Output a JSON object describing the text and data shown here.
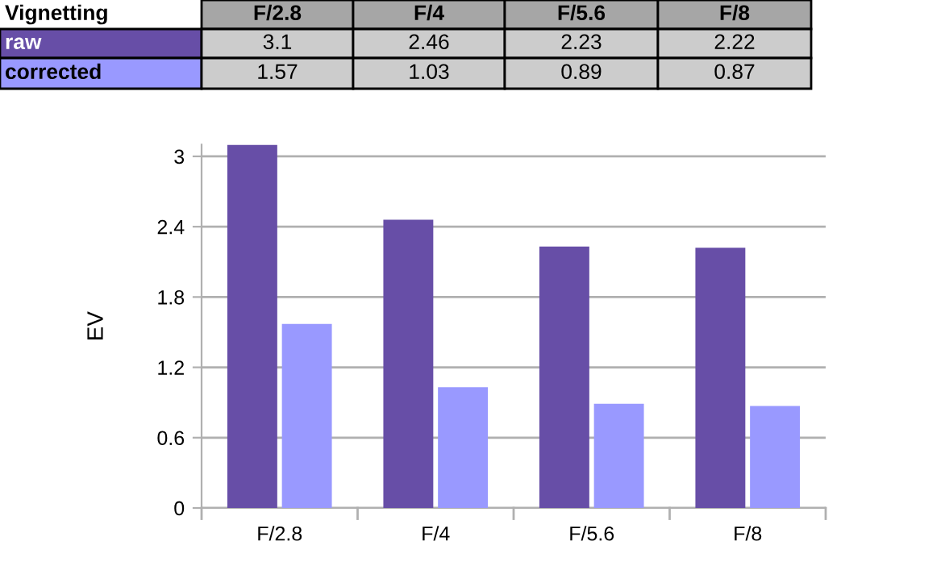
{
  "chart_data": {
    "type": "bar",
    "title": "Vignetting",
    "ylabel": "EV",
    "categories": [
      "F/2.8",
      "F/4",
      "F/5.6",
      "F/8"
    ],
    "series": [
      {
        "name": "raw",
        "color": "#674ea7",
        "values": [
          3.1,
          2.46,
          2.23,
          2.22
        ]
      },
      {
        "name": "corrected",
        "color": "#9999ff",
        "values": [
          1.57,
          1.03,
          0.89,
          0.87
        ]
      }
    ],
    "ylim": [
      0,
      3.1
    ],
    "yticks": [
      0,
      0.6,
      1.2,
      1.8,
      2.4,
      3
    ],
    "grid": "y",
    "legend": false,
    "data_labels": true
  }
}
